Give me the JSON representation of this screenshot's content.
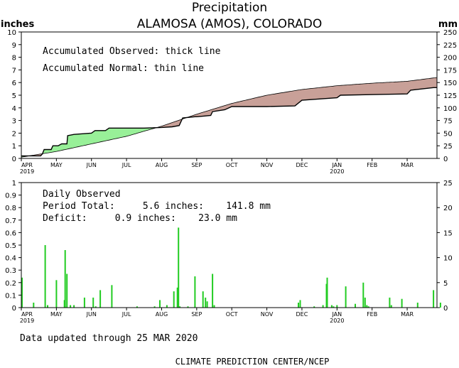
{
  "header": {
    "title": "Precipitation",
    "subtitle": "ALAMOSA (AMOS), COLORADO",
    "left_unit": "inches",
    "right_unit": "mm"
  },
  "chart_data": [
    {
      "type": "area",
      "name": "accumulated",
      "annotations": [
        "Accumulated Observed: thick line",
        "Accumulated Normal: thin line"
      ],
      "x_tick_labels": [
        "APR",
        "MAY",
        "JUN",
        "JUL",
        "AUG",
        "SEP",
        "OCT",
        "NOV",
        "DEC",
        "JAN",
        "FEB",
        "MAR"
      ],
      "x_year_labels": [
        {
          "month_index": 0,
          "label": "2019"
        },
        {
          "month_index": 9,
          "label": "2020"
        }
      ],
      "y_left_ticks": [
        "0",
        "1",
        "2",
        "3",
        "4",
        "5",
        "6",
        "7",
        "8",
        "9",
        "10"
      ],
      "y_right_ticks": [
        "0",
        "25",
        "50",
        "75",
        "100",
        "125",
        "150",
        "175",
        "200",
        "225",
        "250"
      ],
      "ylim": [
        0,
        10
      ],
      "x_months": [
        0,
        1,
        2,
        3,
        4,
        5,
        6,
        7,
        8,
        9,
        10,
        11,
        11.85
      ],
      "series": [
        {
          "name": "Accumulated Observed",
          "x": [
            0,
            0.55,
            0.6,
            0.65,
            0.85,
            0.9,
            1.05,
            1.15,
            1.3,
            1.32,
            1.5,
            2.0,
            2.1,
            2.4,
            2.5,
            3.0,
            3.5,
            4.0,
            4.3,
            4.5,
            4.6,
            4.95,
            5.0,
            5.2,
            5.4,
            5.45,
            5.8,
            6.0,
            7.0,
            7.8,
            8.0,
            9.0,
            9.1,
            11.0,
            11.1,
            11.75,
            11.85
          ],
          "values": [
            0.2,
            0.2,
            0.35,
            0.7,
            0.7,
            1.0,
            1.0,
            1.15,
            1.15,
            1.8,
            1.9,
            2.0,
            2.2,
            2.2,
            2.4,
            2.4,
            2.4,
            2.45,
            2.5,
            2.6,
            3.2,
            3.3,
            3.3,
            3.35,
            3.4,
            3.7,
            3.85,
            4.1,
            4.1,
            4.15,
            4.6,
            4.8,
            5.0,
            5.1,
            5.4,
            5.6,
            5.6
          ]
        },
        {
          "name": "Accumulated Normal",
          "x": [
            0,
            1,
            2,
            3,
            4,
            5,
            6,
            7,
            8,
            9,
            10,
            11,
            11.85
          ],
          "values": [
            0.1,
            0.55,
            1.15,
            1.75,
            2.55,
            3.5,
            4.35,
            5.0,
            5.45,
            5.75,
            5.95,
            6.1,
            6.4
          ]
        }
      ]
    },
    {
      "type": "bar",
      "name": "daily",
      "annotations": {
        "heading": "Daily Observed",
        "period_total": "Period Total:     5.6 inches:    141.8 mm",
        "deficit": "Deficit:     0.9 inches:    23.0 mm"
      },
      "x_tick_labels": [
        "APR",
        "MAY",
        "JUN",
        "JUL",
        "AUG",
        "SEP",
        "OCT",
        "NOV",
        "DEC",
        "JAN",
        "FEB",
        "MAR"
      ],
      "x_year_labels": [
        {
          "month_index": 0,
          "label": "2019"
        },
        {
          "month_index": 9,
          "label": "2020"
        }
      ],
      "y_left_ticks": [
        "0",
        "0.1",
        "0.2",
        "0.3",
        "0.4",
        "0.5",
        "0.6",
        "0.7",
        "0.8",
        "0.9",
        "1"
      ],
      "y_right_ticks": [
        "0",
        "5",
        "10",
        "15",
        "20",
        "25"
      ],
      "ylim": [
        0,
        1
      ],
      "bar_x_months": [
        0.02,
        0.35,
        0.68,
        0.75,
        1.0,
        1.23,
        1.25,
        1.3,
        1.4,
        1.5,
        1.8,
        2.05,
        2.12,
        2.25,
        2.58,
        3.3,
        3.8,
        3.95,
        4.15,
        4.35,
        4.45,
        4.48,
        4.52,
        4.75,
        4.95,
        5.18,
        5.25,
        5.3,
        5.45,
        5.5,
        8.85,
        8.9,
        8.7,
        8.72,
        9.0,
        9.25,
        9.52,
        9.75,
        9.8,
        9.85,
        9.9,
        10.5,
        10.55,
        10.85,
        11.3,
        11.75,
        11.95,
        8.35,
        8.6,
        7.9,
        7.95
      ],
      "values": [
        0.24,
        0.04,
        0.5,
        0.02,
        0.22,
        0.06,
        0.46,
        0.27,
        0.02,
        0.02,
        0.08,
        0.08,
        0.01,
        0.14,
        0.18,
        0.01,
        0.01,
        0.06,
        0.02,
        0.13,
        0.16,
        0.64,
        0.01,
        0.01,
        0.25,
        0.13,
        0.08,
        0.05,
        0.27,
        0.02,
        0.02,
        0.01,
        0.19,
        0.24,
        0.02,
        0.17,
        0.03,
        0.2,
        0.08,
        0.02,
        0.01,
        0.08,
        0.02,
        0.07,
        0.04,
        0.14,
        0.04,
        0.01,
        0.02,
        0.04,
        0.06
      ]
    }
  ],
  "footer": {
    "updated": "Data updated through 25 MAR 2020",
    "credit": "CLIMATE PREDICTION CENTER/NCEP"
  },
  "colors": {
    "surplus_fill": "#98f098",
    "deficit_fill": "#c8a098",
    "bar_color": "#22cc22",
    "line_color": "#000000"
  }
}
